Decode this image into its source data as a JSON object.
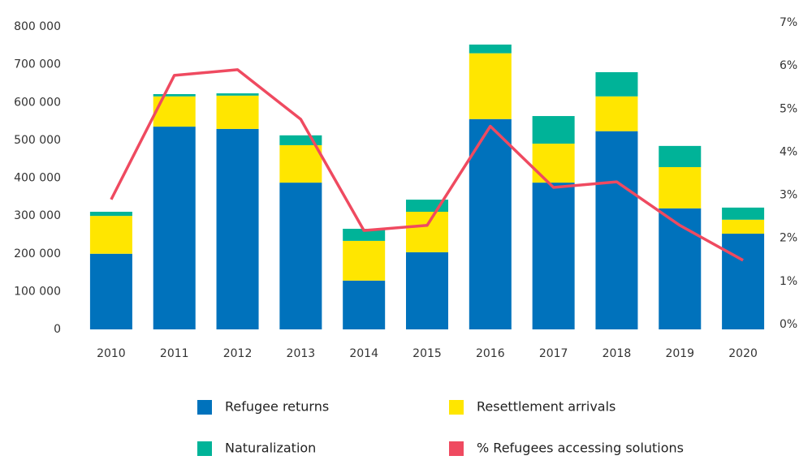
{
  "chart_data": {
    "type": "bar-line",
    "categories": [
      "2010",
      "2011",
      "2012",
      "2013",
      "2014",
      "2015",
      "2016",
      "2017",
      "2018",
      "2019",
      "2020"
    ],
    "series": [
      {
        "name": "Refugee returns",
        "type": "bar",
        "color": "#0072bc",
        "values": [
          200000,
          536000,
          530000,
          388000,
          129000,
          204000,
          556000,
          388000,
          524000,
          320000,
          253000
        ]
      },
      {
        "name": "Resettlement arrivals",
        "type": "bar",
        "color": "#ffe600",
        "values": [
          100000,
          80000,
          88000,
          99000,
          105000,
          107000,
          174000,
          103000,
          92000,
          109000,
          37000
        ]
      },
      {
        "name": "Naturalization",
        "type": "bar",
        "color": "#00b398",
        "values": [
          11000,
          6000,
          6000,
          26000,
          32000,
          32000,
          23000,
          73000,
          64000,
          56000,
          32000
        ]
      },
      {
        "name": "% Refugees accessing solutions",
        "type": "line",
        "axis": "y2",
        "color": "#ef4a60",
        "values": [
          2.9,
          5.78,
          5.91,
          4.76,
          2.18,
          2.3,
          4.6,
          3.18,
          3.31,
          2.3,
          1.49
        ]
      }
    ],
    "ylim": [
      0,
      800000
    ],
    "yticks": [
      {
        "value": 0,
        "label": "0"
      },
      {
        "value": 100000,
        "label": "100 000"
      },
      {
        "value": 200000,
        "label": "200 000"
      },
      {
        "value": 300000,
        "label": "300 000"
      },
      {
        "value": 400000,
        "label": "400 000"
      },
      {
        "value": 500000,
        "label": "500 000"
      },
      {
        "value": 600000,
        "label": "600 000"
      },
      {
        "value": 700000,
        "label": "700 000"
      },
      {
        "value": 800000,
        "label": "800 000"
      }
    ],
    "y2lim": [
      0,
      7
    ],
    "y2ticks": [
      {
        "value": 0,
        "label": "0%"
      },
      {
        "value": 1,
        "label": "1%"
      },
      {
        "value": 2,
        "label": "2%"
      },
      {
        "value": 3,
        "label": "3%"
      },
      {
        "value": 4,
        "label": "4%"
      },
      {
        "value": 5,
        "label": "5%"
      },
      {
        "value": 6,
        "label": "6%"
      },
      {
        "value": 7,
        "label": "7%"
      }
    ]
  }
}
